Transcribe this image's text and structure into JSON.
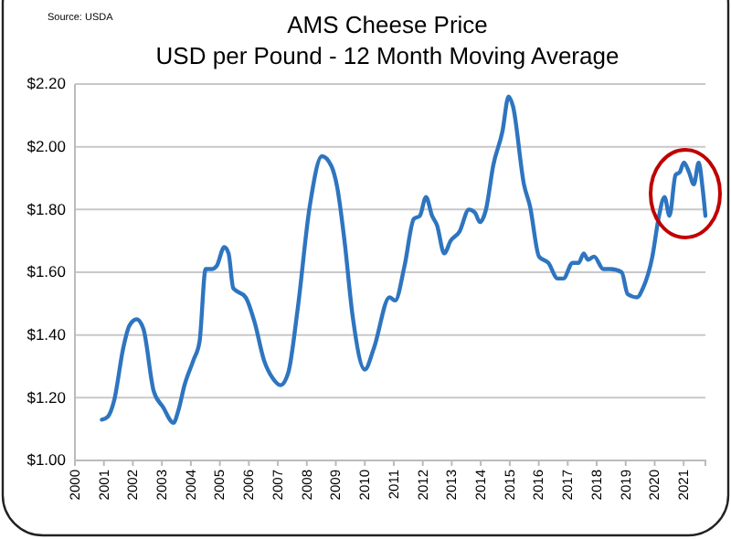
{
  "chart_data": {
    "type": "line",
    "title": "AMS Cheese Price",
    "subtitle": "USD per Pound - 12 Month Moving Average",
    "annotations": [
      "Source: USDA"
    ],
    "x": [
      2000.93,
      2001.14,
      2001.35,
      2001.67,
      2001.88,
      2002.13,
      2002.36,
      2002.72,
      2003.04,
      2003.4,
      2003.57,
      2003.78,
      2004.09,
      2004.3,
      2004.51,
      2004.72,
      2004.89,
      2005.15,
      2005.3,
      2005.46,
      2005.89,
      2006.2,
      2006.52,
      2006.84,
      2007.09,
      2007.36,
      2007.68,
      2008.1,
      2008.52,
      2008.84,
      2009.05,
      2009.3,
      2009.58,
      2010.0,
      2010.32,
      2010.85,
      2011.05,
      2011.37,
      2011.69,
      2011.9,
      2012.11,
      2012.32,
      2012.49,
      2012.74,
      2012.96,
      2013.27,
      2013.59,
      2013.8,
      2013.97,
      2014.18,
      2014.43,
      2014.75,
      2014.96,
      2015.11,
      2015.49,
      2015.7,
      2016.01,
      2016.33,
      2016.65,
      2016.85,
      2017.17,
      2017.38,
      2017.55,
      2017.7,
      2017.91,
      2018.23,
      2018.48,
      2018.86,
      2019.07,
      2019.39,
      2019.6,
      2019.92,
      2020.13,
      2020.34,
      2020.51,
      2020.72,
      2020.87,
      2021.01,
      2021.18,
      2021.35,
      2021.52,
      2021.65,
      2021.75
    ],
    "series": [
      {
        "color": "#2e75c0",
        "values": [
          1.13,
          1.14,
          1.19,
          1.36,
          1.43,
          1.45,
          1.42,
          1.22,
          1.17,
          1.12,
          1.16,
          1.24,
          1.32,
          1.38,
          1.61,
          1.61,
          1.62,
          1.68,
          1.66,
          1.55,
          1.52,
          1.44,
          1.32,
          1.26,
          1.24,
          1.28,
          1.48,
          1.81,
          1.97,
          1.94,
          1.87,
          1.7,
          1.46,
          1.29,
          1.36,
          1.52,
          1.51,
          1.62,
          1.77,
          1.78,
          1.84,
          1.78,
          1.75,
          1.66,
          1.7,
          1.73,
          1.8,
          1.79,
          1.76,
          1.8,
          1.94,
          2.05,
          2.16,
          2.13,
          1.88,
          1.81,
          1.65,
          1.63,
          1.58,
          1.58,
          1.63,
          1.63,
          1.66,
          1.64,
          1.65,
          1.61,
          1.61,
          1.6,
          1.53,
          1.52,
          1.55,
          1.65,
          1.77,
          1.84,
          1.78,
          1.91,
          1.92,
          1.95,
          1.92,
          1.88,
          1.95,
          1.87,
          1.78
        ]
      }
    ],
    "xlim": [
      2000,
      2021.75
    ],
    "xticks": [
      2000,
      2001,
      2002,
      2003,
      2004,
      2005,
      2006,
      2007,
      2008,
      2009,
      2010,
      2011,
      2012,
      2013,
      2014,
      2015,
      2016,
      2017,
      2018,
      2019,
      2020,
      2021
    ],
    "ylim": [
      1,
      2.2
    ],
    "yticks": [
      {
        "value": 1,
        "label": "$1.00"
      },
      {
        "value": 1.2,
        "label": "$1.20"
      },
      {
        "value": 1.4,
        "label": "$1.40"
      },
      {
        "value": 1.6,
        "label": "$1.60"
      },
      {
        "value": 1.8,
        "label": "$1.80"
      },
      {
        "value": 2,
        "label": "$2.00"
      },
      {
        "value": 2.2,
        "label": "$2.20"
      }
    ],
    "grid": "y",
    "marker": "none",
    "line_style": "solid"
  }
}
